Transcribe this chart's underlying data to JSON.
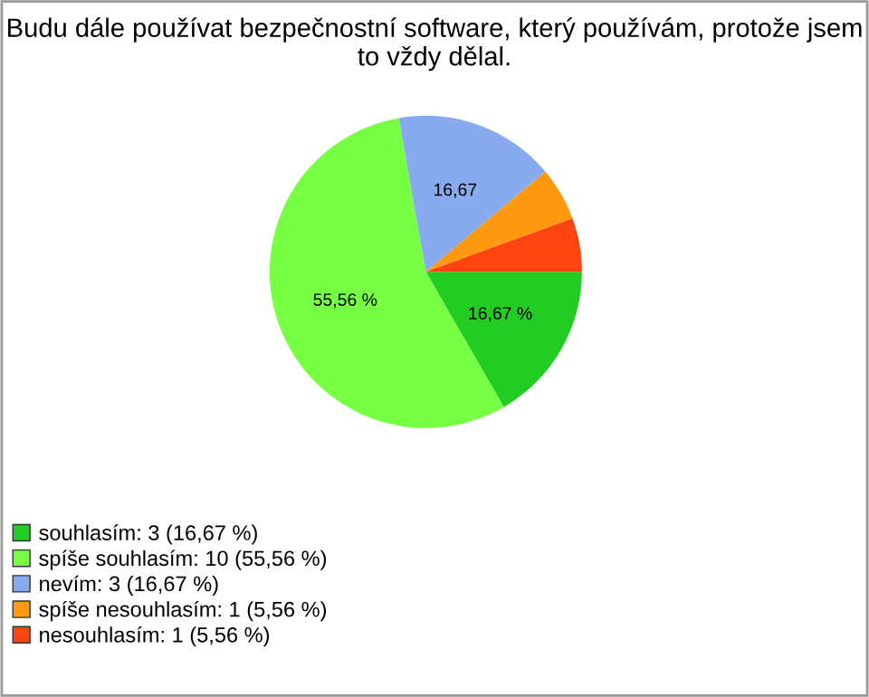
{
  "chart_data": {
    "type": "pie",
    "title": "Budu dále používat bezpečnostní software, který používám, protože jsem to vždy dělal.",
    "categories": [
      "souhlasím: 3 (16,67 %)",
      "spíše souhlasím: 10 (55,56 %)",
      "nevím: 3 (16,67 %)",
      "spíše nesouhlasím: 1 (5,56 %)",
      "nesouhlasím: 1 (5,56 %)"
    ],
    "values": [
      16.67,
      55.56,
      16.67,
      5.56,
      5.56
    ],
    "colors": [
      "#22cc22",
      "#77ff44",
      "#88aaee",
      "#ff9911",
      "#ff4411"
    ],
    "value_labels": [
      "16,67 %",
      "55,56 %",
      "16,67",
      null,
      null
    ],
    "legend": "bottom left"
  }
}
